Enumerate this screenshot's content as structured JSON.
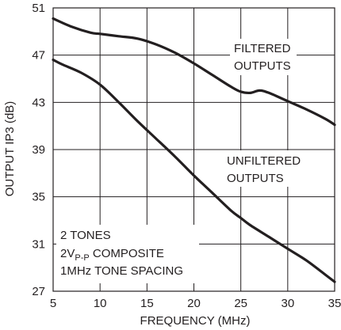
{
  "chart_data": {
    "type": "line",
    "title": "",
    "xlabel": "FREQUENCY (MHz)",
    "ylabel": "OUTPUT IP3 (dB)",
    "xlim": [
      5,
      35
    ],
    "ylim": [
      27,
      51
    ],
    "xticks": [
      5,
      10,
      15,
      20,
      25,
      30,
      35
    ],
    "yticks": [
      27,
      31,
      35,
      39,
      43,
      47,
      51
    ],
    "grid": true,
    "series": [
      {
        "label_lines": [
          "FILTERED",
          "OUTPUTS"
        ],
        "x": [
          5,
          7,
          9,
          10,
          12,
          14,
          16,
          18,
          20,
          22,
          24,
          25,
          26,
          27,
          28,
          30,
          32,
          34,
          35
        ],
        "y": [
          50.1,
          49.4,
          48.9,
          48.8,
          48.6,
          48.4,
          47.9,
          47.2,
          46.3,
          45.3,
          44.3,
          43.9,
          43.8,
          44.0,
          43.8,
          43.1,
          42.4,
          41.6,
          41.1
        ]
      },
      {
        "label_lines": [
          "UNFILTERED",
          "OUTPUTS"
        ],
        "x": [
          5,
          6,
          8,
          10,
          12,
          14,
          16,
          18,
          20,
          22,
          24,
          25,
          26,
          28,
          30,
          32,
          34,
          35
        ],
        "y": [
          46.6,
          46.2,
          45.5,
          44.5,
          43.0,
          41.4,
          39.9,
          38.4,
          36.8,
          35.3,
          33.8,
          33.2,
          32.6,
          31.6,
          30.6,
          29.6,
          28.4,
          27.8
        ]
      }
    ],
    "annotation_lines": [
      "2 TONES",
      "2VP-P COMPOSITE",
      "1MHz TONE SPACING"
    ]
  }
}
